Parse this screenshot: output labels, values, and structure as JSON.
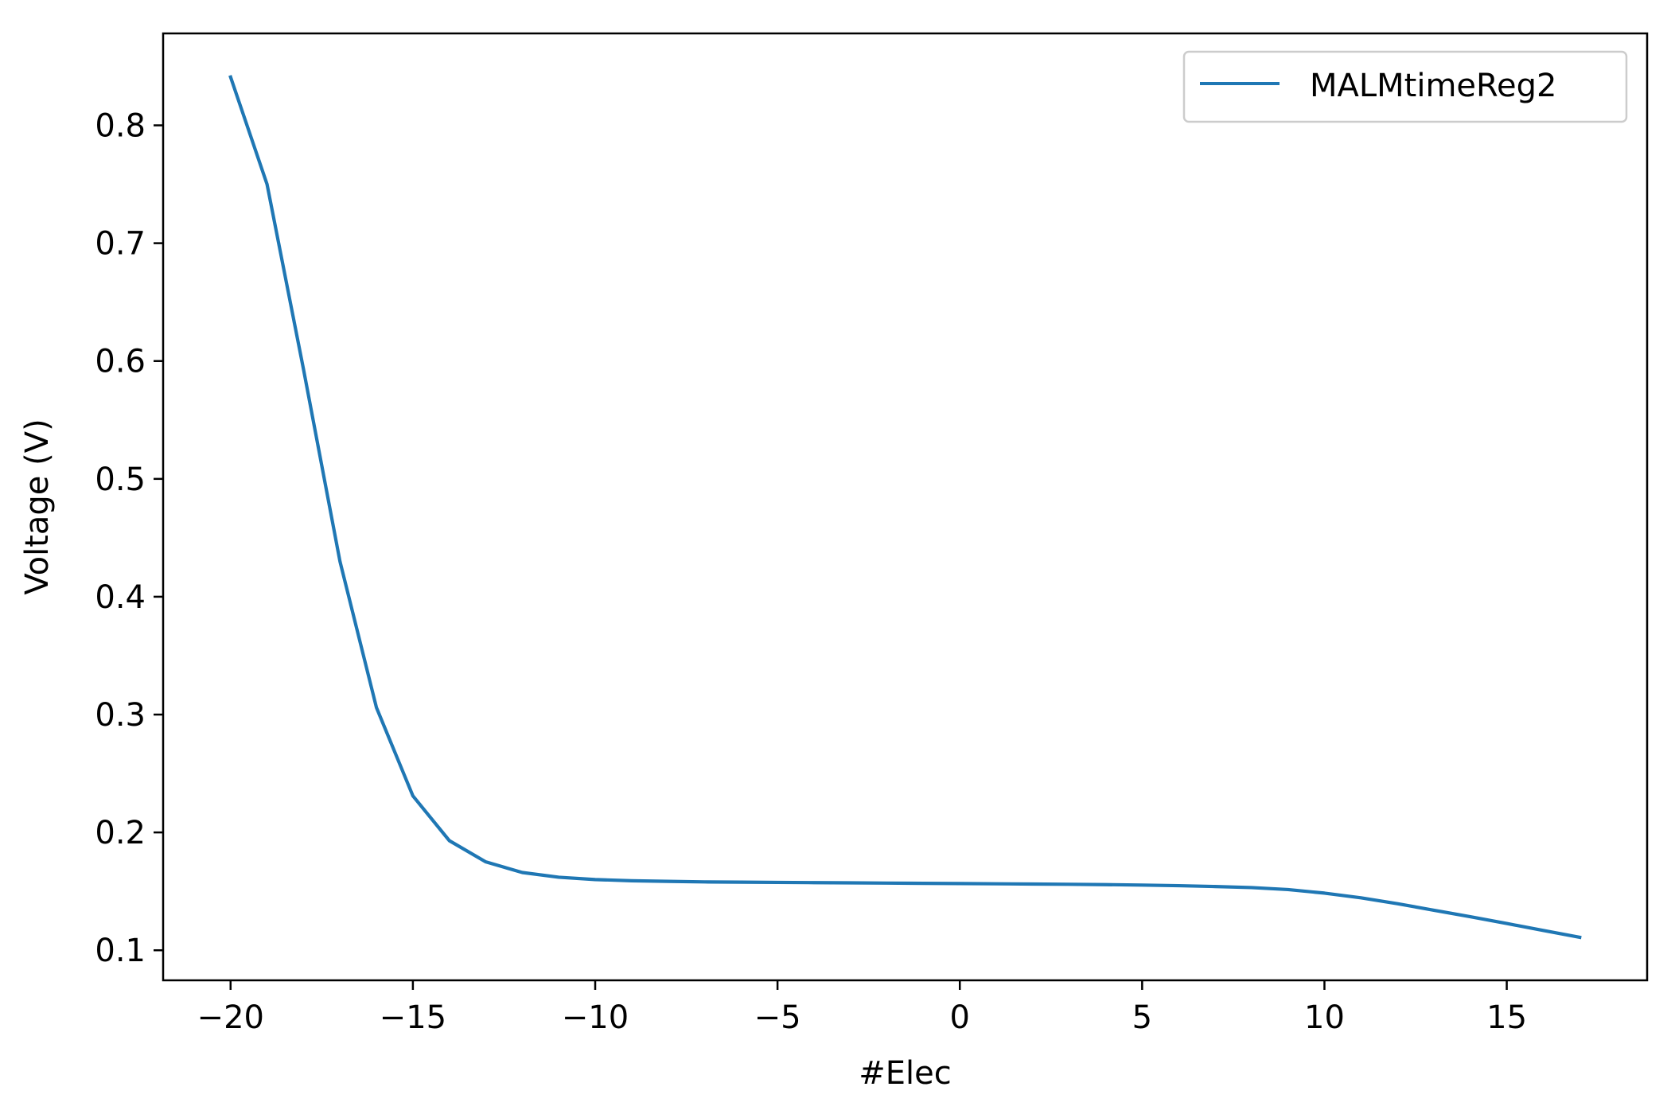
{
  "chart_data": {
    "type": "line",
    "title": "",
    "xlabel": "#Elec",
    "ylabel": "Voltage (V)",
    "xlim": [
      -21.85,
      18.85
    ],
    "ylim": [
      0.0745,
      0.878
    ],
    "x_ticks": [
      -20,
      -15,
      -10,
      -5,
      0,
      5,
      10,
      15
    ],
    "x_tick_labels": [
      "−20",
      "−15",
      "−10",
      "−5",
      "0",
      "5",
      "10",
      "15"
    ],
    "y_ticks": [
      0.1,
      0.2,
      0.3,
      0.4,
      0.5,
      0.6,
      0.7,
      0.8
    ],
    "y_tick_labels": [
      "0.1",
      "0.2",
      "0.3",
      "0.4",
      "0.5",
      "0.6",
      "0.7",
      "0.8"
    ],
    "grid": false,
    "legend_position": "top-right",
    "series": [
      {
        "name": "MALMtimeReg2",
        "color": "#1f77b4",
        "x": [
          -20,
          -19,
          -18,
          -17,
          -16,
          -15,
          -14,
          -13,
          -12,
          -11,
          -10,
          -9,
          -8,
          -7,
          -6,
          -5,
          -4,
          -3,
          -2,
          -1,
          0,
          1,
          2,
          3,
          4,
          5,
          6,
          7,
          8,
          9,
          10,
          11,
          12,
          13,
          14,
          15,
          16,
          17
        ],
        "y": [
          0.841,
          0.75,
          0.593,
          0.43,
          0.306,
          0.231,
          0.193,
          0.175,
          0.166,
          0.162,
          0.16,
          0.159,
          0.1585,
          0.158,
          0.1578,
          0.1576,
          0.1574,
          0.1572,
          0.157,
          0.1568,
          0.1566,
          0.1564,
          0.1562,
          0.156,
          0.1557,
          0.1553,
          0.1548,
          0.1541,
          0.1532,
          0.1515,
          0.1485,
          0.1445,
          0.1395,
          0.134,
          0.1285,
          0.1227,
          0.1168,
          0.111
        ]
      }
    ]
  }
}
